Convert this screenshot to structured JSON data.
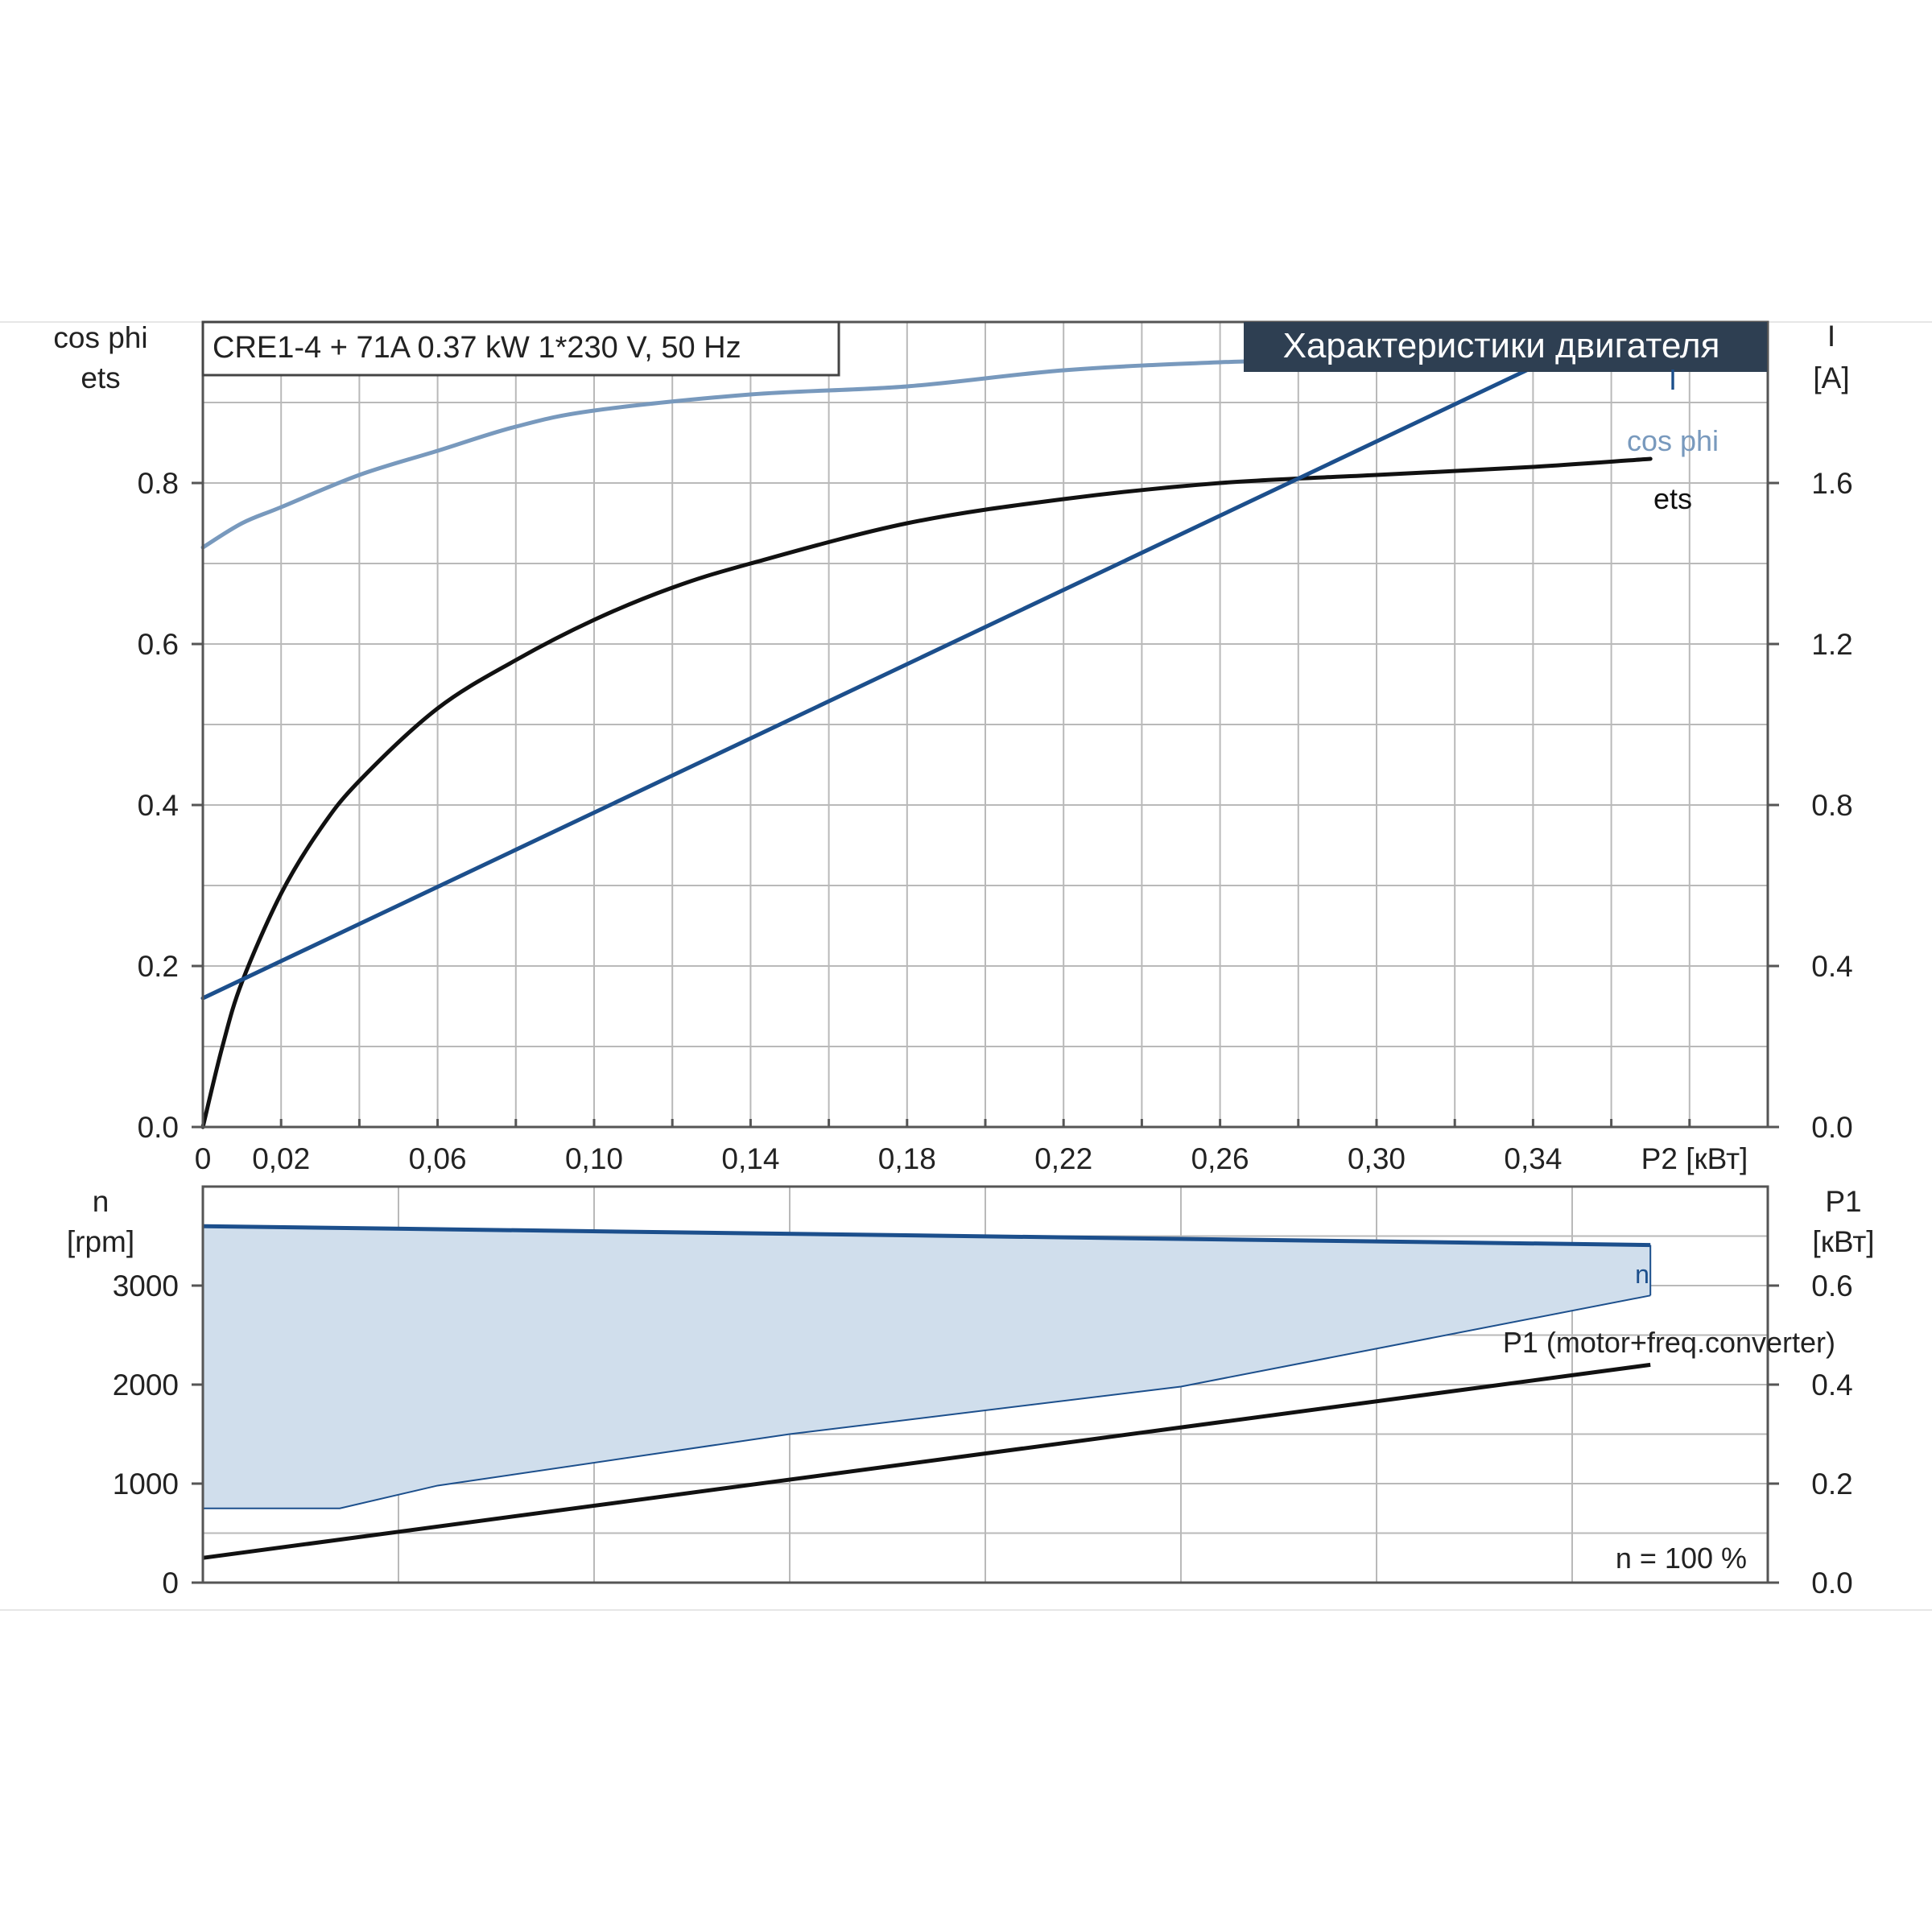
{
  "header": {
    "model_label": "CRE1-4 + 71A   0.37 kW   1*230 V, 50 Hz",
    "chart_title": "Характеристики двигателя"
  },
  "colors": {
    "ets": "#111111",
    "cos_phi": "#7899bd",
    "current": "#1c4f8c",
    "speed": "#1c4f8c",
    "speed_band": "#d0deec",
    "p1": "#111111",
    "title_bg": "#2e3f52",
    "grid": "#b9b9b9"
  },
  "chart_data": [
    {
      "id": "motor-characteristics",
      "type": "line",
      "title": "Характеристики двигателя",
      "subtitle": "CRE1-4 + 71A   0.37 kW   1*230 V, 50 Hz",
      "xlabel": "P2 [кВт]",
      "x_ticks": [
        "0",
        "0,02",
        "0,06",
        "0,10",
        "0,14",
        "0,18",
        "0,22",
        "0,26",
        "0,30",
        "0,34"
      ],
      "x_tick_values": [
        0,
        0.02,
        0.06,
        0.1,
        0.14,
        0.18,
        0.22,
        0.26,
        0.3,
        0.34
      ],
      "xlim": [
        0,
        0.4
      ],
      "ylabel_left": [
        "cos phi",
        "ets"
      ],
      "ylim_left": [
        0,
        1.0
      ],
      "y_ticks_left": [
        "0.0",
        "0.2",
        "0.4",
        "0.6",
        "0.8"
      ],
      "y_tick_values_left": [
        0,
        0.2,
        0.4,
        0.6,
        0.8
      ],
      "ylabel_right": [
        "I",
        "[A]"
      ],
      "ylim_right": [
        0,
        2.0
      ],
      "y_ticks_right": [
        "0.0",
        "0.4",
        "0.8",
        "1.2",
        "1.6"
      ],
      "y_tick_values_right": [
        0,
        0.4,
        0.8,
        1.2,
        1.6
      ],
      "grid": true,
      "series": [
        {
          "name": "cos phi",
          "axis": "left",
          "x": [
            0,
            0.01,
            0.02,
            0.04,
            0.06,
            0.08,
            0.1,
            0.14,
            0.18,
            0.22,
            0.26,
            0.3,
            0.34,
            0.37
          ],
          "values": [
            0.72,
            0.75,
            0.77,
            0.81,
            0.84,
            0.87,
            0.89,
            0.91,
            0.92,
            0.94,
            0.95,
            0.955,
            0.963,
            0.965
          ]
        },
        {
          "name": "ets",
          "axis": "left",
          "x": [
            0,
            0.005,
            0.01,
            0.02,
            0.03,
            0.04,
            0.06,
            0.08,
            0.1,
            0.12,
            0.14,
            0.18,
            0.22,
            0.26,
            0.3,
            0.34,
            0.37
          ],
          "values": [
            0.0,
            0.1,
            0.18,
            0.29,
            0.37,
            0.43,
            0.52,
            0.58,
            0.63,
            0.67,
            0.7,
            0.75,
            0.78,
            0.8,
            0.81,
            0.82,
            0.83
          ]
        },
        {
          "name": "I",
          "axis": "right",
          "x": [
            0,
            0.36
          ],
          "values": [
            0.32,
            1.98
          ]
        }
      ]
    },
    {
      "id": "speed-and-input-power",
      "type": "area",
      "annotation": "n = 100 %",
      "xlim": [
        0,
        0.4
      ],
      "ylabel_left": [
        "n",
        "[rpm]"
      ],
      "ylim_left": [
        0,
        4000
      ],
      "y_ticks_left": [
        "0",
        "1000",
        "2000",
        "3000"
      ],
      "y_tick_values_left": [
        0,
        1000,
        2000,
        3000
      ],
      "ylabel_right": [
        "P1",
        "[кВт]"
      ],
      "ylim_right": [
        0,
        0.8
      ],
      "y_ticks_right": [
        "0.0",
        "0.2",
        "0.4",
        "0.6"
      ],
      "y_tick_values_right": [
        0,
        0.2,
        0.4,
        0.6
      ],
      "grid": true,
      "series": [
        {
          "name": "n",
          "axis": "left",
          "x": [
            0,
            0.37
          ],
          "values": [
            3600,
            3410
          ]
        },
        {
          "name": "n band lower",
          "axis": "left",
          "x": [
            0,
            0.035,
            0.06,
            0.15,
            0.25,
            0.37
          ],
          "values": [
            750,
            750,
            980,
            1500,
            1980,
            2900
          ]
        },
        {
          "name": "P1 (motor+freq.converter)",
          "axis": "right",
          "x": [
            0,
            0.37
          ],
          "values": [
            0.05,
            0.44
          ]
        }
      ],
      "labels": [
        "n",
        "P1 (motor+freq.converter)"
      ]
    }
  ]
}
